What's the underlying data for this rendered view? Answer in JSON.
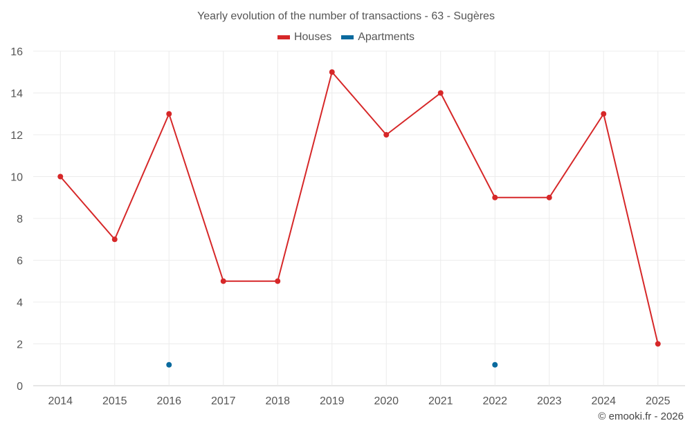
{
  "chart_data": {
    "type": "line",
    "title": "Yearly evolution of the number of transactions - 63 - Sugères",
    "xlabel": "",
    "ylabel": "",
    "categories": [
      "2014",
      "2015",
      "2016",
      "2017",
      "2018",
      "2019",
      "2020",
      "2021",
      "2022",
      "2023",
      "2024",
      "2025"
    ],
    "ylim": [
      0,
      16
    ],
    "yticks": [
      0,
      2,
      4,
      6,
      8,
      10,
      12,
      14,
      16
    ],
    "grid": true,
    "legend_position": "top-center",
    "series": [
      {
        "name": "Houses",
        "color": "#d62728",
        "connected": true,
        "values": [
          10,
          7,
          13,
          5,
          5,
          15,
          12,
          14,
          9,
          9,
          13,
          2
        ]
      },
      {
        "name": "Apartments",
        "color": "#0a6a9e",
        "connected": false,
        "values": [
          null,
          null,
          1,
          null,
          null,
          null,
          null,
          null,
          1,
          null,
          null,
          null
        ]
      }
    ]
  },
  "credit": "© emooki.fr - 2026"
}
